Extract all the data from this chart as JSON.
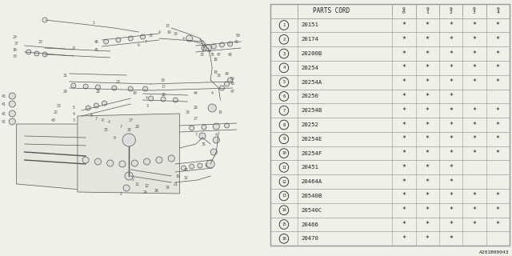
{
  "bg_color": "#f5f5f0",
  "parts": [
    {
      "num": 1,
      "code": "20151",
      "cols": [
        "*",
        "*",
        "*",
        "*",
        "*"
      ]
    },
    {
      "num": 2,
      "code": "20174",
      "cols": [
        "*",
        "*",
        "*",
        "*",
        "*"
      ]
    },
    {
      "num": 3,
      "code": "20200B",
      "cols": [
        "*",
        "*",
        "*",
        "*",
        "*"
      ]
    },
    {
      "num": 4,
      "code": "20254",
      "cols": [
        "*",
        "*",
        "*",
        "*",
        "*"
      ]
    },
    {
      "num": 5,
      "code": "20254A",
      "cols": [
        "*",
        "*",
        "*",
        "*",
        "*"
      ]
    },
    {
      "num": 6,
      "code": "20250",
      "cols": [
        "*",
        "*",
        "*",
        "",
        ""
      ]
    },
    {
      "num": 7,
      "code": "20254B",
      "cols": [
        "*",
        "*",
        "*",
        "*",
        "*"
      ]
    },
    {
      "num": 8,
      "code": "20252",
      "cols": [
        "*",
        "*",
        "*",
        "*",
        "*"
      ]
    },
    {
      "num": 9,
      "code": "20254E",
      "cols": [
        "*",
        "*",
        "*",
        "*",
        "*"
      ]
    },
    {
      "num": 10,
      "code": "20254F",
      "cols": [
        "*",
        "*",
        "*",
        "*",
        "*"
      ]
    },
    {
      "num": 11,
      "code": "20451",
      "cols": [
        "*",
        "*",
        "*",
        "",
        ""
      ]
    },
    {
      "num": 12,
      "code": "20464A",
      "cols": [
        "*",
        "*",
        "*",
        "",
        ""
      ]
    },
    {
      "num": 13,
      "code": "20540B",
      "cols": [
        "*",
        "*",
        "*",
        "*",
        "*"
      ]
    },
    {
      "num": 14,
      "code": "20540C",
      "cols": [
        "*",
        "*",
        "*",
        "*",
        "*"
      ]
    },
    {
      "num": 15,
      "code": "20466",
      "cols": [
        "*",
        "*",
        "*",
        "*",
        "*"
      ]
    },
    {
      "num": 16,
      "code": "20470",
      "cols": [
        "*",
        "*",
        "*",
        "",
        ""
      ]
    }
  ],
  "col_headers": [
    [
      "9",
      "0"
    ],
    [
      "9",
      "1"
    ],
    [
      "9",
      "2"
    ],
    [
      "9",
      "3"
    ],
    [
      "9",
      "4"
    ]
  ],
  "header_label": "PARTS CORD",
  "footer": "A201B00043",
  "table_line_color": "#999999",
  "text_color": "#222222"
}
